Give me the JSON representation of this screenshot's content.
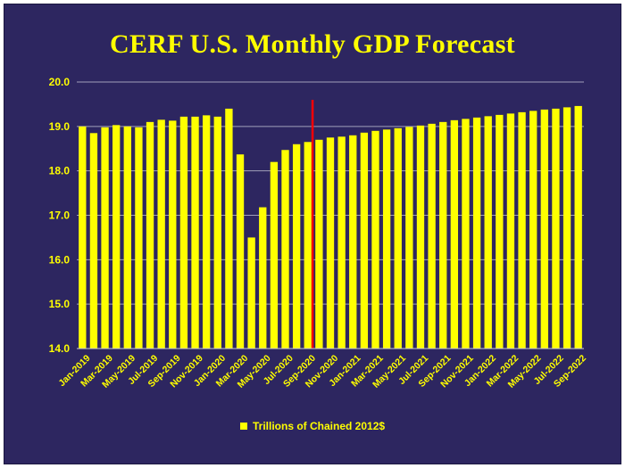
{
  "chart_data": {
    "type": "bar",
    "title": "CERF U.S. Monthly GDP Forecast",
    "legend": "Trillions of Chained 2012$",
    "legend_position": "bottom",
    "ylim": [
      14.0,
      20.0
    ],
    "yticks": [
      "14.0",
      "15.0",
      "16.0",
      "17.0",
      "18.0",
      "19.0",
      "20.0"
    ],
    "grid": "horizontal",
    "colors": {
      "background": "#2d2660",
      "bars": "#ffff00",
      "text": "#ffff00",
      "marker": "#ff0000",
      "grid": "#c8c8d8"
    },
    "marker_after_category": "Sep-2020",
    "categories": [
      "Jan-2019",
      "Feb-2019",
      "Mar-2019",
      "Apr-2019",
      "May-2019",
      "Jun-2019",
      "Jul-2019",
      "Aug-2019",
      "Sep-2019",
      "Oct-2019",
      "Nov-2019",
      "Dec-2019",
      "Jan-2020",
      "Feb-2020",
      "Mar-2020",
      "Apr-2020",
      "May-2020",
      "Jun-2020",
      "Jul-2020",
      "Aug-2020",
      "Sep-2020",
      "Oct-2020",
      "Nov-2020",
      "Dec-2020",
      "Jan-2021",
      "Feb-2021",
      "Mar-2021",
      "Apr-2021",
      "May-2021",
      "Jun-2021",
      "Jul-2021",
      "Aug-2021",
      "Sep-2021",
      "Oct-2021",
      "Nov-2021",
      "Dec-2021",
      "Jan-2022",
      "Feb-2022",
      "Mar-2022",
      "Apr-2022",
      "May-2022",
      "Jun-2022",
      "Jul-2022",
      "Aug-2022",
      "Sep-2022"
    ],
    "shown_x_labels": [
      "Jan-2019",
      "Mar-2019",
      "May-2019",
      "Jul-2019",
      "Sep-2019",
      "Nov-2019",
      "Jan-2020",
      "Mar-2020",
      "May-2020",
      "Jul-2020",
      "Sep-2020",
      "Nov-2020",
      "Jan-2021",
      "Mar-2021",
      "May-2021",
      "Jul-2021",
      "Sep-2021",
      "Nov-2021",
      "Jan-2022",
      "Mar-2022",
      "May-2022",
      "Jul-2022",
      "Sep-2022"
    ],
    "values": [
      19.0,
      18.85,
      18.98,
      19.03,
      19.0,
      18.98,
      19.1,
      19.15,
      19.13,
      19.22,
      19.22,
      19.25,
      19.22,
      19.4,
      18.37,
      16.5,
      17.18,
      18.2,
      18.47,
      18.6,
      18.65,
      18.7,
      18.75,
      18.77,
      18.8,
      18.86,
      18.9,
      18.93,
      18.96,
      18.99,
      19.02,
      19.06,
      19.1,
      19.14,
      19.17,
      19.2,
      19.23,
      19.26,
      19.29,
      19.32,
      19.35,
      19.38,
      19.4,
      19.43,
      19.46
    ]
  }
}
